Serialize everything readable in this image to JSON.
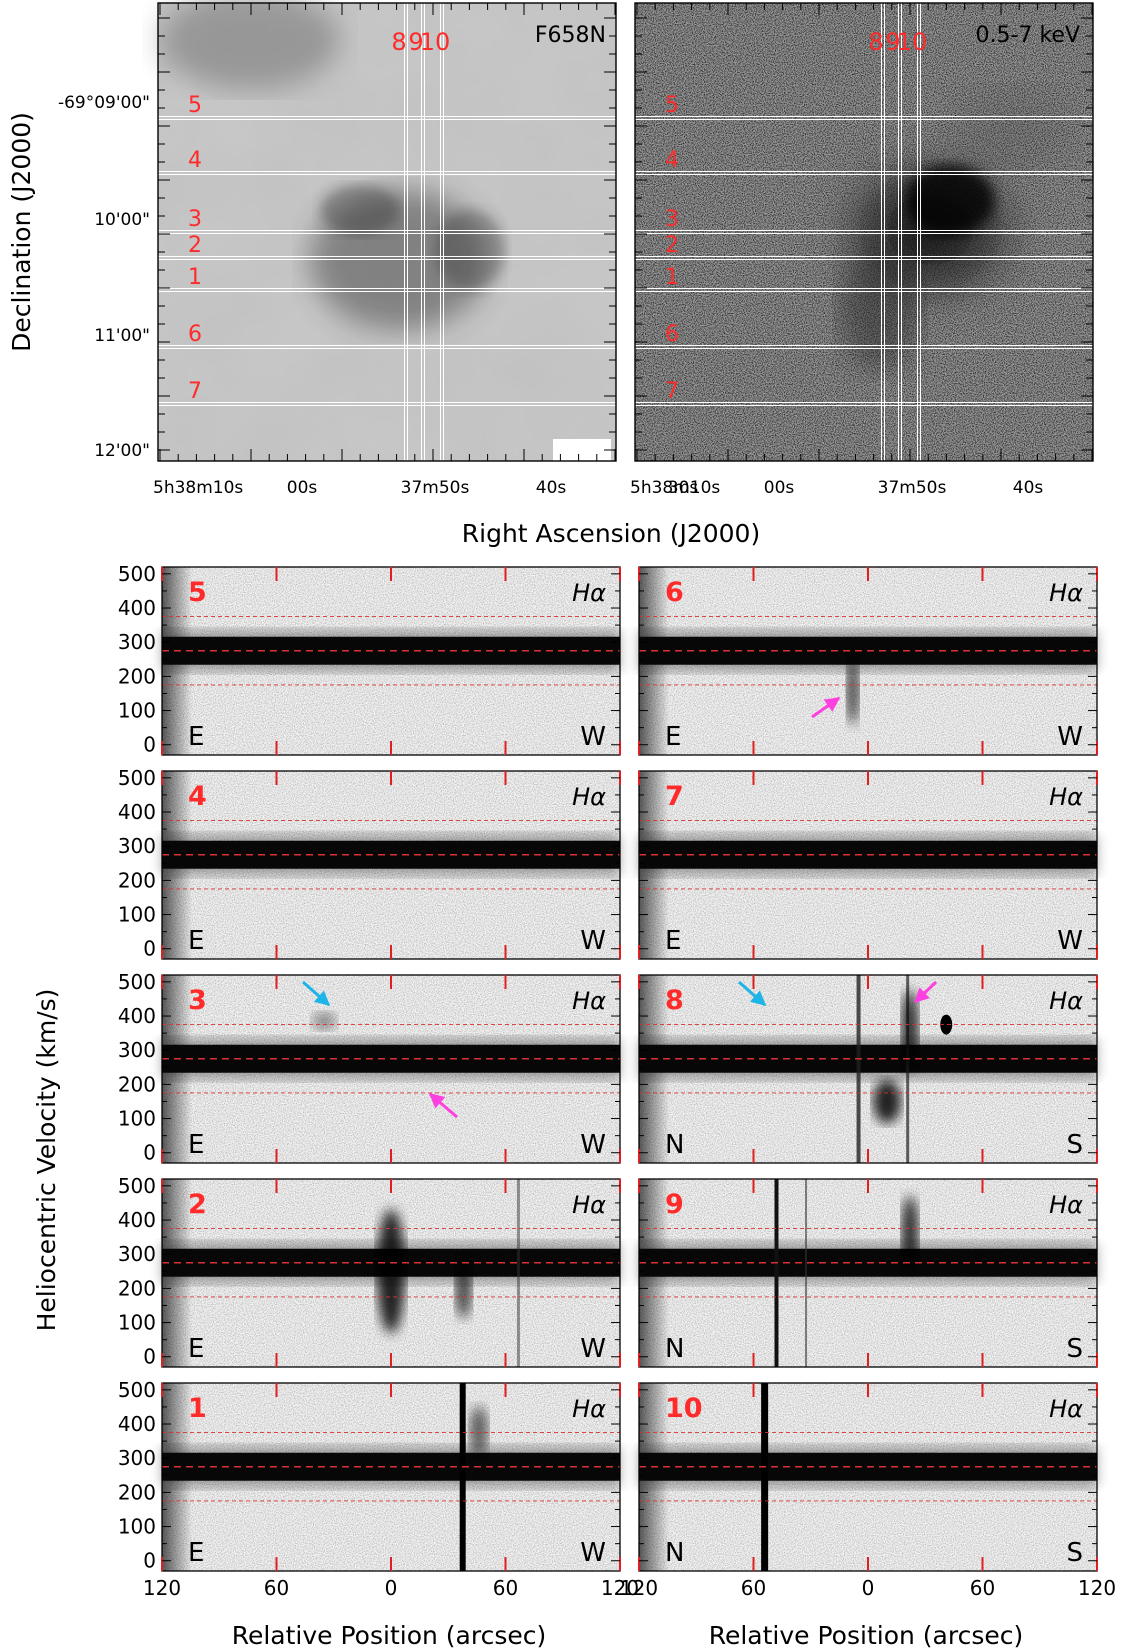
{
  "top": {
    "dec_label": "Declination (J2000)",
    "ra_label": "Right Ascension (J2000)",
    "dec_ticks": [
      "-69°09'00\"",
      "10'00\"",
      "11'00\"",
      "12'00\""
    ],
    "ra_ticks": [
      "5h38m10s",
      "00s",
      "37m50s",
      "40s",
      "30s"
    ],
    "left_band": "F658N",
    "right_band": "0.5-7 keV",
    "vslit_labels": [
      "8",
      "9",
      "10"
    ],
    "hslit_labels": [
      "5",
      "4",
      "3",
      "2",
      "1",
      "6",
      "7"
    ]
  },
  "spectra": {
    "ylabel": "Heliocentric Velocity (km/s)",
    "xlabel": "Relative Position (arcsec)",
    "line_label": "Hα",
    "yticks": [
      "500",
      "400",
      "300",
      "200",
      "100",
      "0"
    ],
    "xticks": [
      "120",
      "60",
      "0",
      "60",
      "120"
    ],
    "ref_lines_kms": [
      375,
      275,
      175
    ],
    "vrange": [
      -30,
      520
    ],
    "panels": [
      {
        "id": "5",
        "left": "E",
        "right": "W"
      },
      {
        "id": "6",
        "left": "E",
        "right": "W"
      },
      {
        "id": "4",
        "left": "E",
        "right": "W"
      },
      {
        "id": "7",
        "left": "E",
        "right": "W"
      },
      {
        "id": "3",
        "left": "E",
        "right": "W"
      },
      {
        "id": "8",
        "left": "N",
        "right": "S"
      },
      {
        "id": "2",
        "left": "E",
        "right": "W"
      },
      {
        "id": "9",
        "left": "N",
        "right": "S"
      },
      {
        "id": "1",
        "left": "E",
        "right": "W"
      },
      {
        "id": "10",
        "left": "N",
        "right": "S"
      }
    ]
  },
  "colors": {
    "slit_label": "#ff2a2a",
    "ref_line": "#d93030",
    "arrow_cyan": "#1fb4e8",
    "arrow_magenta": "#ff40e0"
  }
}
